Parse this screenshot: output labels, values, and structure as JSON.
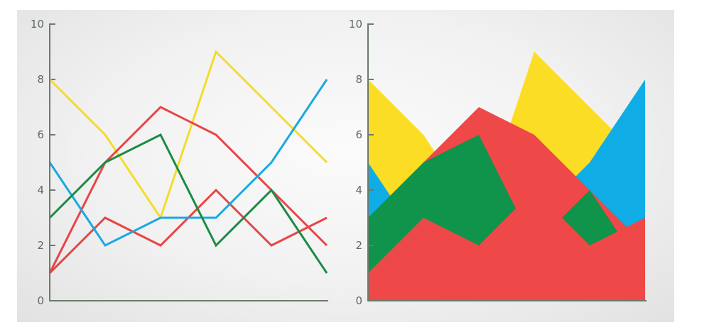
{
  "chart_data": [
    {
      "type": "line",
      "x": [
        1,
        2,
        3,
        4,
        5,
        6,
        7
      ],
      "ylim": [
        0,
        10
      ],
      "yticks": [
        0,
        2,
        4,
        6,
        8,
        10
      ],
      "grid": false,
      "series": [
        {
          "color": "#f5dc2a",
          "values": [
            8,
            6,
            3,
            9,
            7,
            5,
            null
          ]
        },
        {
          "color": "#e84545",
          "values": [
            1,
            5,
            7,
            6,
            4,
            2,
            null
          ]
        },
        {
          "color": "#e84545",
          "values": [
            1,
            3,
            2,
            4,
            2,
            3,
            null
          ]
        },
        {
          "color": "#1aa8e2",
          "values": [
            5,
            2,
            3,
            3,
            5,
            8,
            null
          ]
        },
        {
          "color": "#1d8a45",
          "values": [
            3,
            5,
            6,
            2,
            4,
            1,
            null
          ]
        }
      ]
    },
    {
      "type": "area",
      "x": [
        1,
        2,
        3,
        4,
        5,
        6
      ],
      "ylim": [
        0,
        10
      ],
      "yticks": [
        0,
        2,
        4,
        6,
        8,
        10
      ],
      "grid": false,
      "series": [
        {
          "color": "#fbdd26",
          "values": [
            8,
            6,
            3,
            9,
            7,
            5
          ]
        },
        {
          "color": "#10ace6",
          "values": [
            5,
            2,
            3,
            3,
            5,
            8
          ]
        },
        {
          "color": "#ee4848",
          "values": [
            1,
            5,
            7,
            6,
            4,
            2
          ]
        },
        {
          "color": "#10934a",
          "values": [
            3,
            5,
            6,
            2,
            4,
            1
          ]
        },
        {
          "color": "#ee4848",
          "values": [
            1,
            3,
            2,
            4,
            2,
            3
          ]
        }
      ]
    }
  ]
}
